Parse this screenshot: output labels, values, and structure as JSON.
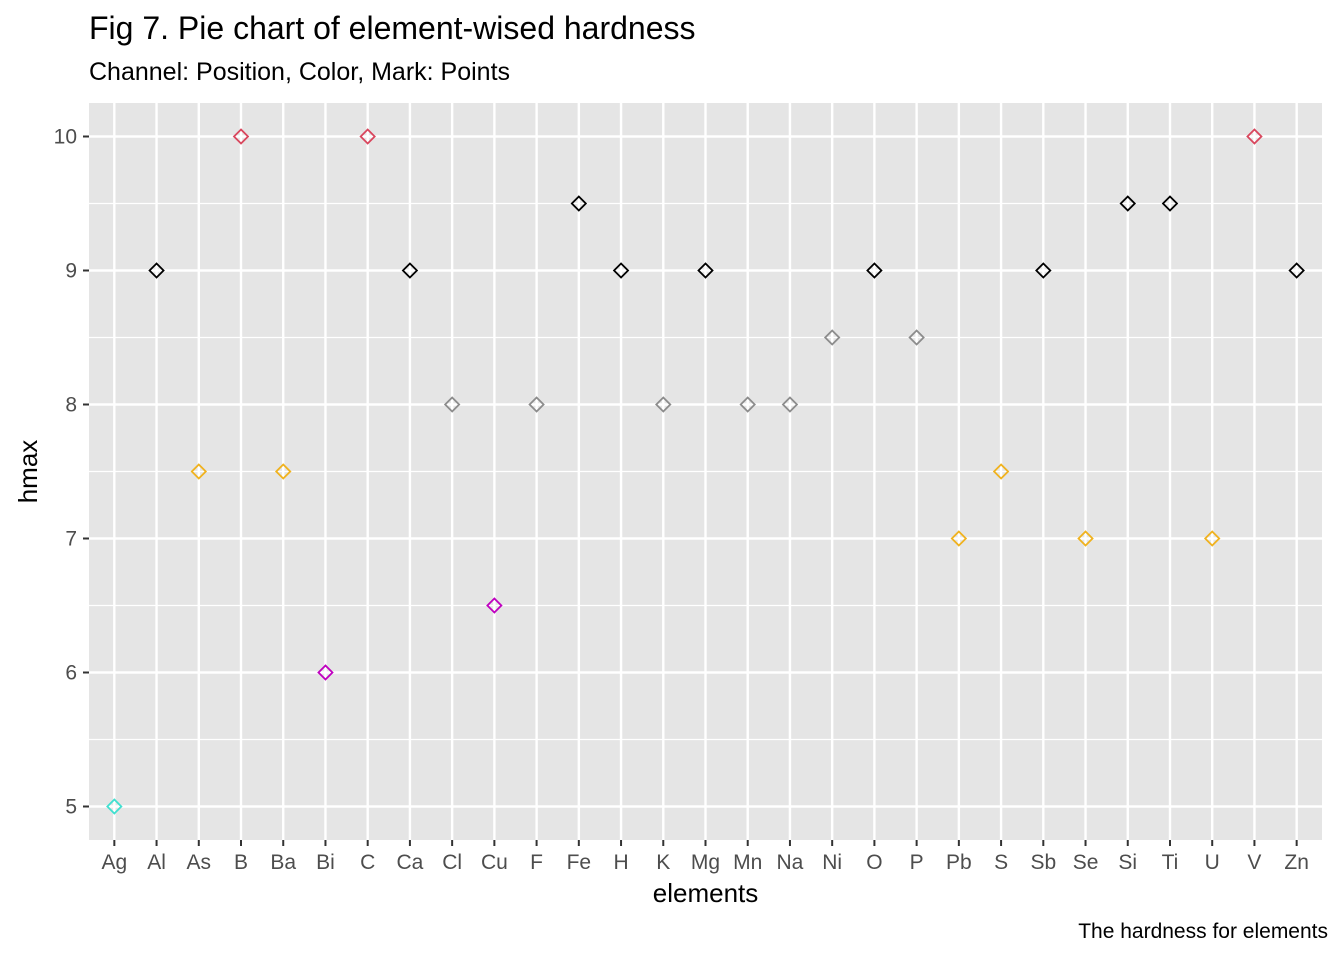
{
  "title": "Fig 7. Pie chart of element-wised hardness",
  "subtitle": "Channel: Position, Color, Mark: Points",
  "caption": "The hardness for elements",
  "chart_data": {
    "type": "scatter",
    "marker": "open-diamond",
    "xlabel": "elements",
    "ylabel": "hmax",
    "categories": [
      "Ag",
      "Al",
      "As",
      "B",
      "Ba",
      "Bi",
      "C",
      "Ca",
      "Cl",
      "Cu",
      "F",
      "Fe",
      "H",
      "K",
      "Mg",
      "Mn",
      "Na",
      "Ni",
      "O",
      "P",
      "Pb",
      "S",
      "Sb",
      "Se",
      "Si",
      "Ti",
      "U",
      "V",
      "Zn"
    ],
    "values": [
      5,
      9,
      7.5,
      10,
      7.5,
      6,
      10,
      9,
      8,
      6.5,
      8,
      9.5,
      9,
      8,
      9,
      8,
      8,
      8.5,
      9,
      8.5,
      7,
      7.5,
      9,
      7,
      9.5,
      9.5,
      7,
      10,
      9
    ],
    "colors": [
      "#40e0d0",
      "#000000",
      "#f0b21e",
      "#d9465d",
      "#f0b21e",
      "#c000c0",
      "#d9465d",
      "#000000",
      "#8c8c8c",
      "#c000c0",
      "#8c8c8c",
      "#000000",
      "#000000",
      "#8c8c8c",
      "#000000",
      "#8c8c8c",
      "#8c8c8c",
      "#8c8c8c",
      "#000000",
      "#8c8c8c",
      "#f0b21e",
      "#f0b21e",
      "#000000",
      "#f0b21e",
      "#000000",
      "#000000",
      "#f0b21e",
      "#d9465d",
      "#000000"
    ],
    "ylim": [
      4.75,
      10.25
    ],
    "yticks": [
      5,
      6,
      7,
      8,
      9,
      10
    ],
    "grid": true,
    "background": "#e5e5e5",
    "gridline_color": "#ffffff"
  }
}
